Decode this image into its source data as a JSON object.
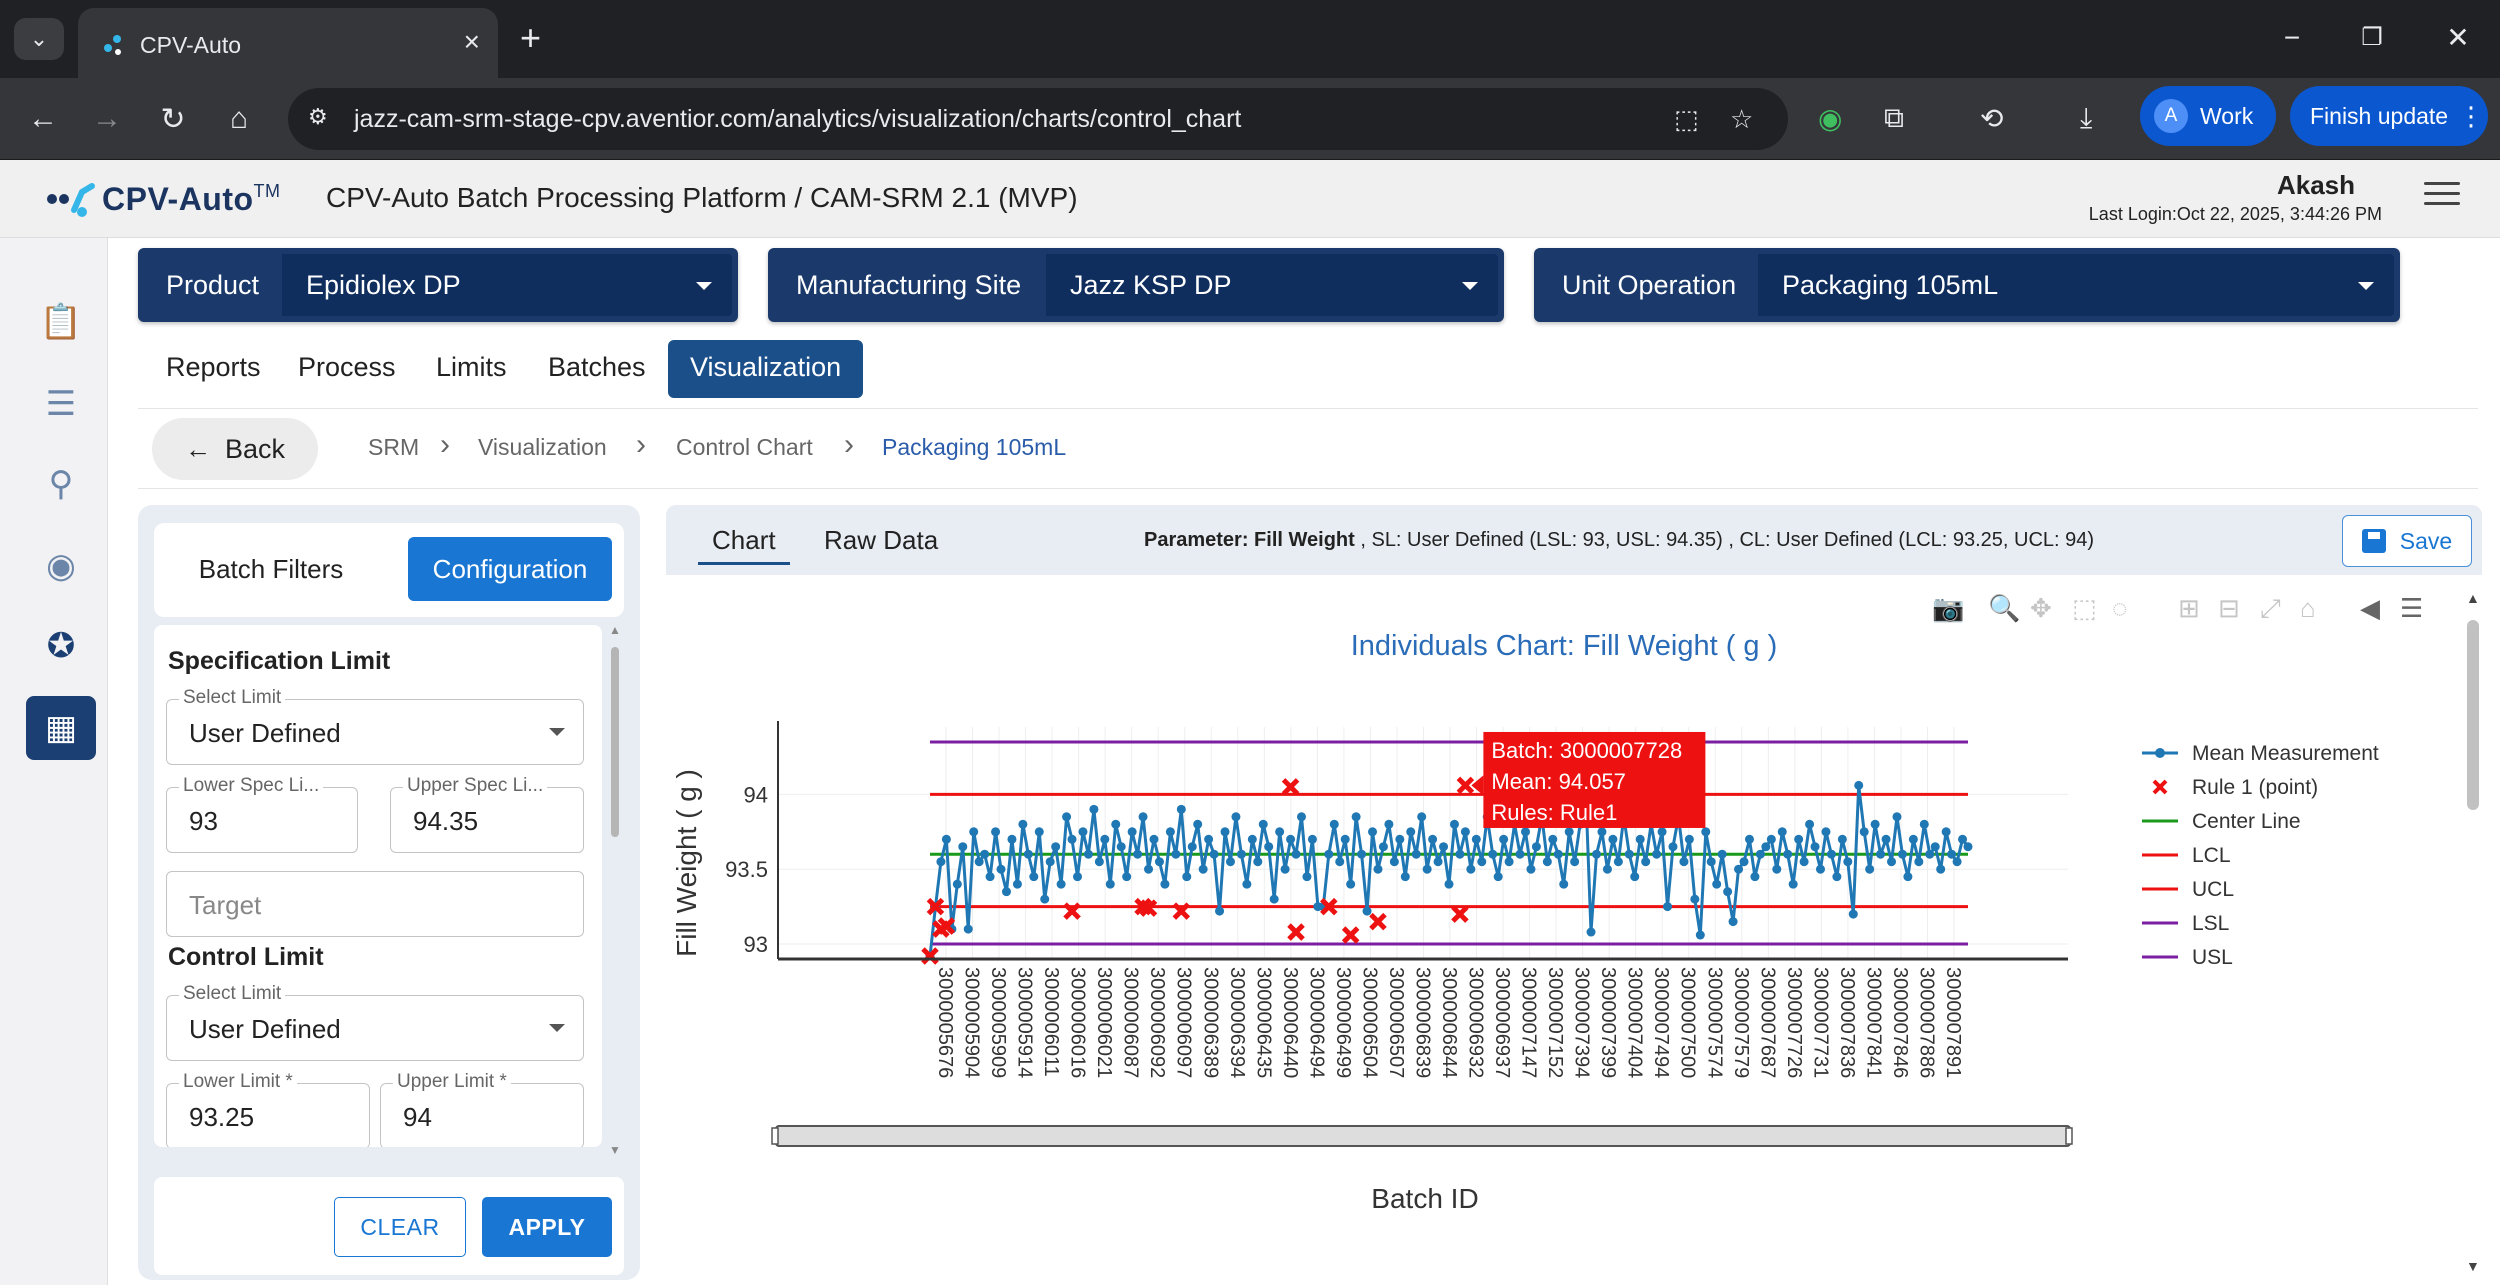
{
  "browser": {
    "tab_title": "CPV-Auto",
    "url": "jazz-cam-srm-stage-cpv.aventior.com/analytics/visualization/charts/control_chart",
    "profile_initial": "A",
    "profile_label": "Work",
    "update_label": "Finish update"
  },
  "header": {
    "logo_text": "CPV-Auto",
    "logo_tm": "TM",
    "platform_title": "CPV-Auto Batch Processing Platform / CAM-SRM 2.1 (MVP)",
    "user_name": "Akash",
    "last_login": "Last Login:Oct 22, 2025, 3:44:26 PM"
  },
  "selectors": {
    "product": {
      "label": "Product",
      "value": "Epidiolex DP"
    },
    "site": {
      "label": "Manufacturing Site",
      "value": "Jazz KSP DP"
    },
    "unit_op": {
      "label": "Unit Operation",
      "value": "Packaging 105mL"
    }
  },
  "nav_tabs": [
    "Reports",
    "Process",
    "Limits",
    "Batches",
    "Visualization"
  ],
  "breadcrumb": {
    "back_label": "Back",
    "items": [
      "SRM",
      "Visualization",
      "Control Chart",
      "Packaging 105mL"
    ]
  },
  "panel": {
    "tab_filters": "Batch Filters",
    "tab_config": "Configuration",
    "spec_title": "Specification Limit",
    "spec_select_label": "Select Limit",
    "spec_select_value": "User Defined",
    "lsl_label": "Lower Spec Li...",
    "lsl_value": "93",
    "usl_label": "Upper Spec Li...",
    "usl_value": "94.35",
    "target_placeholder": "Target",
    "control_title": "Control Limit",
    "control_select_label": "Select Limit",
    "control_select_value": "User Defined",
    "lcl_label": "Lower Limit *",
    "lcl_value": "93.25",
    "ucl_label": "Upper Limit *",
    "ucl_value": "94",
    "clear_label": "CLEAR",
    "apply_label": "APPLY"
  },
  "chart_panel": {
    "tab_chart": "Chart",
    "tab_raw": "Raw Data",
    "param_label": "Parameter: Fill Weight",
    "sl_info": ", SL: User Defined (LSL: 93, USL: 94.35)",
    "cl_info": ", CL: User Defined (LCL: 93.25, UCL: 94)",
    "save_label": "Save"
  },
  "colors": {
    "series": "#1f77b4",
    "center": "#1a9a1a",
    "control": "#ee1111",
    "spec": "#7b1fa2",
    "violation": "#ee1111",
    "title": "#2a6cb8"
  },
  "chart_data": {
    "type": "line",
    "title": "Individuals Chart: Fill Weight ( g )",
    "xlabel": "Batch ID",
    "ylabel": "Fill Weight ( g )",
    "ylim": [
      92.9,
      94.45
    ],
    "yticks": [
      "93",
      "93.5",
      "94"
    ],
    "x_tick_labels": [
      "3000005676",
      "3000005904",
      "3000005909",
      "3000005914",
      "3000006011",
      "3000006016",
      "3000006021",
      "3000006087",
      "3000006092",
      "3000006097",
      "3000006389",
      "3000006394",
      "3000006435",
      "3000006440",
      "3000006494",
      "3000006499",
      "3000006504",
      "3000006507",
      "3000006839",
      "3000006844",
      "3000006932",
      "3000006937",
      "3000007147",
      "3000007152",
      "3000007394",
      "3000007399",
      "3000007404",
      "3000007494",
      "3000007500",
      "3000007574",
      "3000007579",
      "3000007687",
      "3000007726",
      "3000007731",
      "3000007836",
      "3000007841",
      "3000007846",
      "3000007886",
      "3000007891"
    ],
    "lines": {
      "usl": 94.35,
      "ucl": 94,
      "center": 93.6,
      "lcl": 93.25,
      "lsl": 93
    },
    "series": [
      {
        "name": "Mean Measurement",
        "values": [
          92.92,
          93.25,
          93.55,
          93.7,
          93.1,
          93.4,
          93.65,
          93.1,
          93.75,
          93.55,
          93.6,
          93.45,
          93.75,
          93.5,
          93.35,
          93.7,
          93.4,
          93.8,
          93.6,
          93.45,
          93.75,
          93.3,
          93.55,
          93.65,
          93.4,
          93.85,
          93.7,
          93.45,
          93.75,
          93.6,
          93.9,
          93.55,
          93.7,
          93.4,
          93.8,
          93.65,
          93.45,
          93.75,
          93.6,
          93.85,
          93.5,
          93.7,
          93.55,
          93.4,
          93.75,
          93.6,
          93.9,
          93.45,
          93.65,
          93.8,
          93.5,
          93.7,
          93.6,
          93.22,
          93.75,
          93.55,
          93.85,
          93.6,
          93.4,
          93.7,
          93.55,
          93.8,
          93.65,
          93.3,
          93.75,
          93.5,
          93.7,
          93.6,
          93.85,
          93.45,
          93.7,
          93.25,
          93.25,
          93.6,
          93.8,
          93.55,
          93.7,
          93.4,
          93.85,
          93.6,
          93.22,
          93.75,
          93.5,
          93.65,
          93.8,
          93.55,
          93.7,
          93.45,
          93.75,
          93.6,
          93.85,
          93.5,
          93.7,
          93.55,
          93.65,
          93.4,
          93.8,
          93.6,
          93.75,
          93.5,
          93.7,
          93.55,
          93.85,
          93.6,
          93.45,
          93.7,
          93.55,
          93.8,
          93.6,
          93.75,
          93.5,
          93.65,
          93.85,
          93.55,
          93.7,
          93.6,
          93.4,
          93.75,
          93.55,
          93.8,
          94.05,
          93.08,
          93.6,
          93.75,
          93.5,
          93.7,
          93.55,
          93.85,
          93.6,
          93.45,
          93.7,
          93.55,
          93.8,
          93.6,
          93.75,
          93.25,
          93.65,
          93.85,
          93.55,
          93.7,
          93.3,
          93.06,
          93.75,
          93.55,
          93.4,
          93.6,
          93.35,
          93.15,
          93.5,
          93.55,
          93.7,
          93.45,
          93.6,
          93.65,
          93.7,
          93.5,
          93.75,
          93.6,
          93.4,
          93.7,
          93.55,
          93.8,
          93.65,
          93.5,
          93.75,
          93.6,
          93.45,
          93.7,
          93.55,
          93.2,
          94.06,
          93.75,
          93.5,
          93.8,
          93.6,
          93.7,
          93.55,
          93.85,
          93.6,
          93.45,
          93.7,
          93.55,
          93.8,
          93.6,
          93.65,
          93.5,
          93.75,
          93.6,
          93.55,
          93.7,
          93.65
        ]
      },
      {
        "name": "Rule 1 (point)",
        "points": [
          [
            0,
            92.92
          ],
          [
            1,
            93.25
          ],
          [
            2,
            93.1
          ],
          [
            3,
            93.12
          ],
          [
            26,
            93.22
          ],
          [
            39,
            93.25
          ],
          [
            40,
            93.24
          ],
          [
            46,
            93.22
          ],
          [
            66,
            94.05
          ],
          [
            67,
            93.08
          ],
          [
            73,
            93.25
          ],
          [
            77,
            93.06
          ],
          [
            82,
            93.15
          ],
          [
            97,
            93.2
          ],
          [
            98,
            94.06
          ]
        ]
      }
    ],
    "legend": [
      "Mean Measurement",
      "Rule 1 (point)",
      "Center Line",
      "LCL",
      "UCL",
      "LSL",
      "USL"
    ],
    "legend_position": "right",
    "tooltip": {
      "batch": "Batch: 3000007728",
      "mean": "Mean: 94.057",
      "rules": "Rules: Rule1"
    }
  }
}
